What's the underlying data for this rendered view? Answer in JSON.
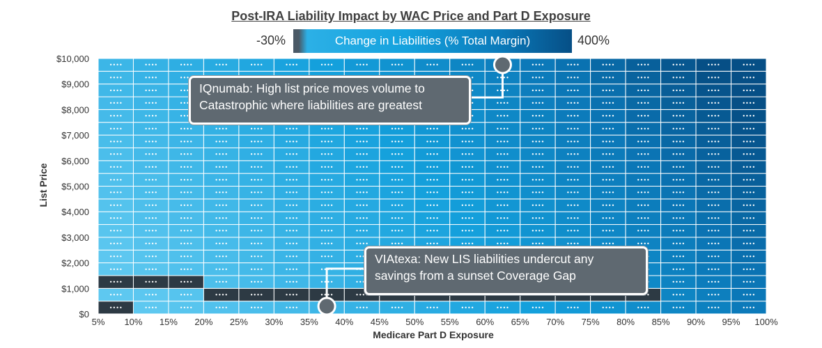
{
  "title": "Post-IRA Liability Impact by WAC Price and Part D Exposure",
  "legend": {
    "min_label": "-30%",
    "max_label": "400%",
    "label": "Change in Liabilities (% Total Margin)",
    "colors": [
      "#4a5966",
      "#2cb0e6",
      "#14a2de",
      "#0a79b9",
      "#064f86"
    ]
  },
  "callouts": [
    {
      "text": "IQnumab: High list price moves volume to Catastrophic where liabilities are greatest",
      "marker_x": 62.5,
      "marker_y": 10000
    },
    {
      "text": "VIAtexa: New LIS liabilities undercut any savings from a sunset Coverage Gap",
      "marker_x": 37.5,
      "marker_y": 0
    }
  ],
  "chart_data": {
    "type": "heatmap",
    "title": "Post-IRA Liability Impact by WAC Price and Part D Exposure",
    "xlabel": "Medicare Part D Exposure",
    "ylabel": "List Price",
    "x_ticks": [
      "5%",
      "10%",
      "15%",
      "20%",
      "25%",
      "30%",
      "35%",
      "40%",
      "45%",
      "50%",
      "55%",
      "60%",
      "65%",
      "70%",
      "75%",
      "80%",
      "85%",
      "90%",
      "95%",
      "100%"
    ],
    "y_ticks": [
      "$0",
      "$1,000",
      "$2,000",
      "$3,000",
      "$4,000",
      "$5,000",
      "$6,000",
      "$7,000",
      "$8,000",
      "$9,000",
      "$10,000"
    ],
    "x_range": [
      5,
      100
    ],
    "y_range": [
      0,
      10000
    ],
    "color_scale": {
      "min": -30,
      "max": 400,
      "unit": "% Total Margin"
    },
    "grid": true,
    "n_cols": 19,
    "n_rows": 20,
    "negative_region": "dark cells at list price $0-$1,000 for low Part D exposure; $500 row dark from 20% to 85%",
    "cell_label": "••••"
  }
}
